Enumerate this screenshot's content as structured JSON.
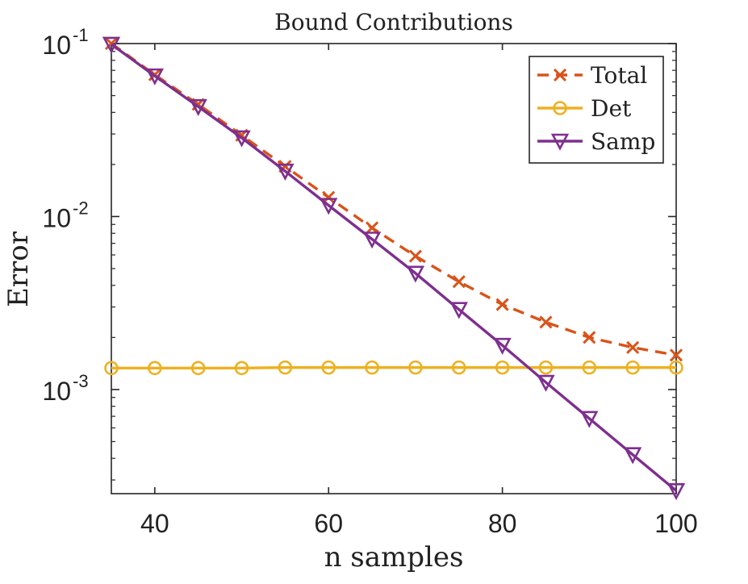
{
  "chart_data": {
    "type": "line",
    "title": "Bound Contributions",
    "xlabel": "n samples",
    "ylabel": "Error",
    "x_scale": "linear",
    "y_scale": "log",
    "xlim": [
      35,
      100
    ],
    "ylim": [
      0.00025,
      0.1
    ],
    "x_ticks": [
      40,
      60,
      80,
      100
    ],
    "y_ticks": [
      {
        "value": 0.1,
        "base": "10",
        "exp": "-1"
      },
      {
        "value": 0.01,
        "base": "10",
        "exp": "-2"
      },
      {
        "value": 0.001,
        "base": "10",
        "exp": "-3"
      }
    ],
    "grid": false,
    "legend_position": "top-right",
    "x": [
      35,
      40,
      45,
      50,
      55,
      60,
      65,
      70,
      75,
      80,
      85,
      90,
      95,
      100
    ],
    "series": [
      {
        "name": "Total",
        "color": "#D95319",
        "line_style": "dashed",
        "marker": "x",
        "values": [
          0.1,
          0.066,
          0.0445,
          0.0295,
          0.0195,
          0.0129,
          0.0086,
          0.0059,
          0.0042,
          0.0031,
          0.00245,
          0.002,
          0.00175,
          0.00158
        ]
      },
      {
        "name": "Det",
        "color": "#EDB120",
        "line_style": "solid",
        "marker": "circle",
        "values": [
          0.00133,
          0.00133,
          0.00133,
          0.00133,
          0.00134,
          0.00134,
          0.00134,
          0.00134,
          0.00134,
          0.00134,
          0.00134,
          0.00134,
          0.00134,
          0.00134
        ]
      },
      {
        "name": "Samp",
        "color": "#7E2F8E",
        "line_style": "solid",
        "marker": "triangle-down",
        "values": [
          0.099,
          0.065,
          0.0432,
          0.0285,
          0.0183,
          0.0116,
          0.0074,
          0.0047,
          0.0029,
          0.0018,
          0.0011,
          0.00068,
          0.00042,
          0.00026
        ]
      }
    ]
  }
}
